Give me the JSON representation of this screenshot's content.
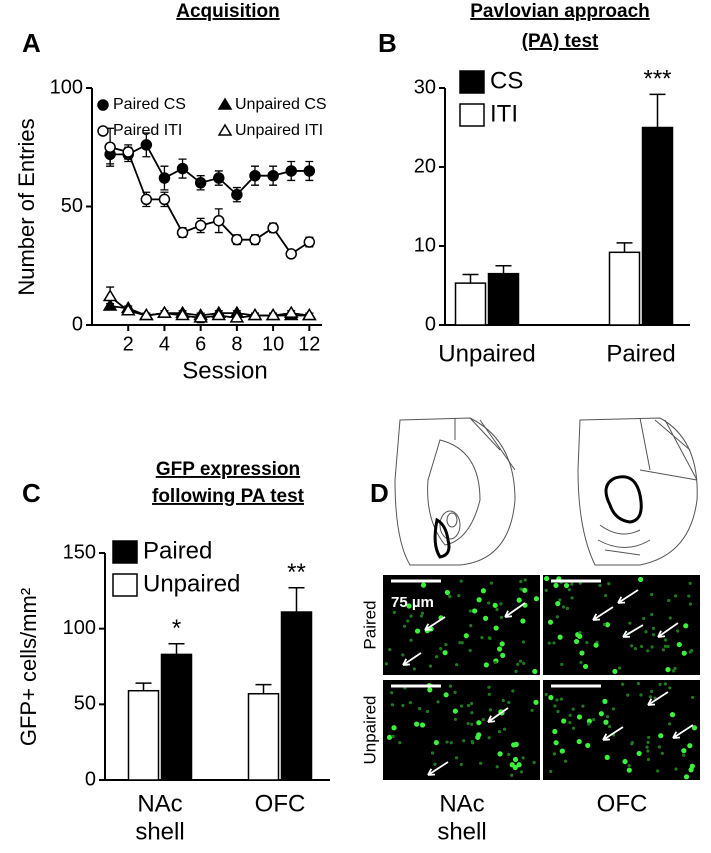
{
  "chart_data": [
    {
      "type": "line",
      "panel": "A",
      "title": "Acquisition",
      "xlabel": "Session",
      "ylabel": "Number of Entries",
      "x": [
        1,
        2,
        3,
        4,
        5,
        6,
        7,
        8,
        9,
        10,
        11,
        12
      ],
      "xlim": [
        0,
        12.7
      ],
      "xticks": [
        2,
        4,
        6,
        8,
        10,
        12
      ],
      "ylim": [
        0,
        100
      ],
      "yticks": [
        0,
        50,
        100
      ],
      "series": [
        {
          "name": "Paired CS",
          "marker": "circle",
          "filled": true,
          "color": "#000000",
          "values": [
            72,
            72,
            76,
            62,
            66,
            60,
            62,
            55,
            63,
            63,
            65,
            65
          ],
          "errors": [
            4,
            3,
            5,
            5,
            4,
            3,
            3,
            3,
            4,
            4,
            4,
            4
          ]
        },
        {
          "name": "Paired ITI",
          "marker": "circle",
          "filled": false,
          "color": "#000000",
          "values": [
            75,
            73,
            53,
            53,
            39,
            42,
            44,
            36,
            36,
            41,
            30,
            35
          ],
          "errors": [
            8,
            3,
            3,
            3,
            2,
            3,
            5,
            2,
            2,
            2,
            1,
            2
          ]
        },
        {
          "name": "Unpaired CS",
          "marker": "triangle",
          "filled": true,
          "color": "#000000",
          "values": [
            8,
            7,
            4,
            5,
            5,
            4,
            5,
            5,
            4,
            4,
            4,
            4
          ],
          "errors": [
            1,
            1,
            1,
            1,
            1,
            1,
            1,
            1,
            1,
            1,
            1,
            1
          ]
        },
        {
          "name": "Unpaired ITI",
          "marker": "triangle",
          "filled": false,
          "color": "#000000",
          "values": [
            12,
            6,
            4,
            5,
            4,
            3,
            4,
            3,
            4,
            4,
            5,
            4
          ],
          "errors": [
            4,
            1,
            1,
            1,
            1,
            2,
            1,
            1,
            1,
            1,
            1,
            1
          ]
        }
      ]
    },
    {
      "type": "bar",
      "panel": "B",
      "title": [
        "Pavlovian approach",
        "(PA) test"
      ],
      "categories": [
        [
          "Unpaired"
        ],
        [
          "Paired"
        ]
      ],
      "ylim": [
        0,
        30
      ],
      "yticks": [
        0,
        10,
        20,
        30
      ],
      "series": [
        {
          "name": "CS",
          "color": "#000000",
          "values": [
            6.5,
            25
          ],
          "errors": [
            1,
            4.2
          ],
          "annotations": [
            null,
            "***"
          ]
        },
        {
          "name": "ITI",
          "color": "#ffffff",
          "values": [
            5.3,
            9.2
          ],
          "errors": [
            1.1,
            1.2
          ],
          "annotations": [
            null,
            null
          ]
        }
      ]
    },
    {
      "type": "bar",
      "panel": "C",
      "title": [
        "GFP expression",
        "following PA test"
      ],
      "ylabel": "GFP+ cells/mm²",
      "categories": [
        [
          "NAc",
          "shell"
        ],
        [
          "OFC"
        ]
      ],
      "ylim": [
        0,
        150
      ],
      "yticks": [
        0,
        50,
        100,
        150
      ],
      "series": [
        {
          "name": "Paired",
          "color": "#000000",
          "values": [
            83,
            111
          ],
          "errors": [
            7,
            16
          ],
          "annotations": [
            "*",
            "**"
          ]
        },
        {
          "name": "Unpaired",
          "color": "#ffffff",
          "values": [
            59,
            57
          ],
          "errors": [
            5,
            6
          ],
          "annotations": [
            null,
            null
          ]
        }
      ]
    }
  ],
  "panel_d": {
    "panel": "D",
    "scale_bar": "75 µm",
    "rows": [
      "Paired",
      "Unpaired"
    ],
    "columns": [
      [
        "NAc",
        "shell"
      ],
      [
        "OFC"
      ]
    ]
  }
}
